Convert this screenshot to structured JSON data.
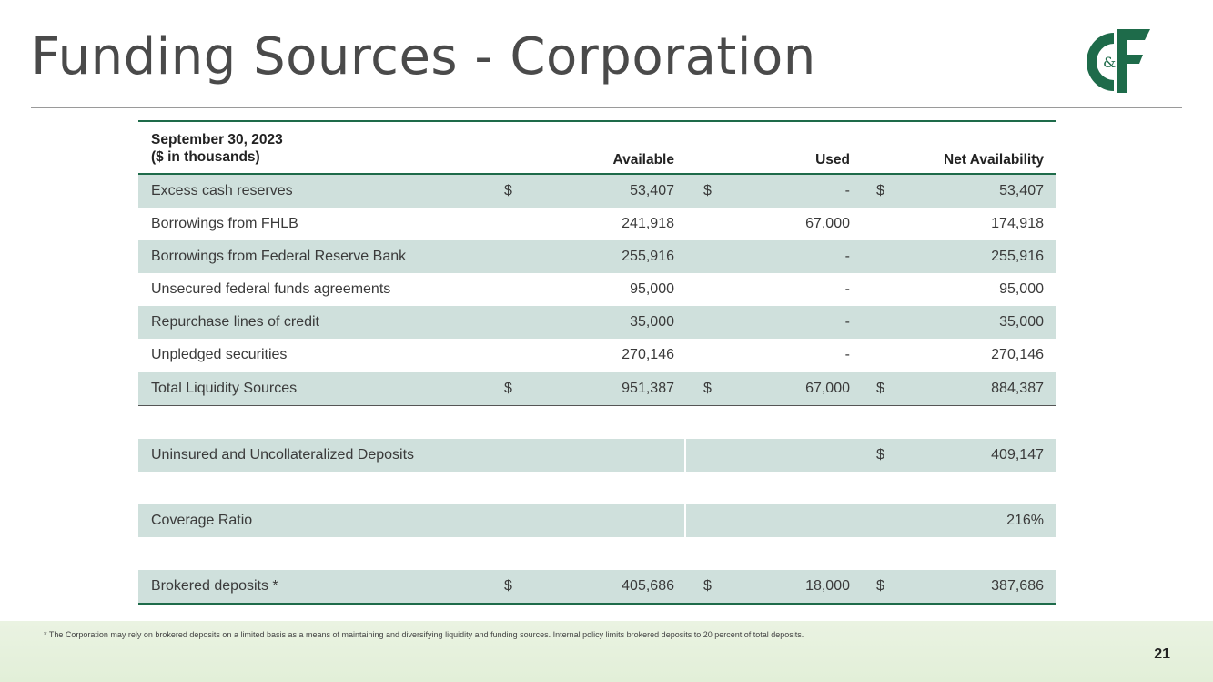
{
  "title": "Funding Sources - Corporation",
  "brand_color": "#1e6b4a",
  "table": {
    "date_line1": "September 30, 2023",
    "date_line2": "($ in thousands)",
    "headers": [
      "Available",
      "Used",
      "Net Availability"
    ],
    "rows": [
      {
        "label": "Excess cash reserves",
        "c1cur": "$",
        "c1": "53,407",
        "c2cur": "$",
        "c2": "-",
        "c3cur": "$",
        "c3": "53,407"
      },
      {
        "label": "Borrowings from FHLB",
        "c1": "241,918",
        "c2": "67,000",
        "c3": "174,918"
      },
      {
        "label": "Borrowings from Federal Reserve Bank",
        "c1": "255,916",
        "c2": "-",
        "c3": "255,916"
      },
      {
        "label": "Unsecured federal funds agreements",
        "c1": "95,000",
        "c2": "-",
        "c3": "95,000"
      },
      {
        "label": "Repurchase lines of credit",
        "c1": "35,000",
        "c2": "-",
        "c3": "35,000"
      },
      {
        "label": "Unpledged securities",
        "c1": "270,146",
        "c2": "-",
        "c3": "270,146"
      }
    ],
    "total": {
      "label": "Total Liquidity Sources",
      "c1cur": "$",
      "c1": "951,387",
      "c2cur": "$",
      "c2": "67,000",
      "c3cur": "$",
      "c3": "884,387"
    },
    "uninsured": {
      "label": "Uninsured and Uncollateralized Deposits",
      "c3cur": "$",
      "c3": "409,147"
    },
    "coverage": {
      "label": "Coverage Ratio",
      "c3": "216%"
    },
    "brokered": {
      "label": "Brokered deposits *",
      "c1cur": "$",
      "c1": "405,686",
      "c2cur": "$",
      "c2": "18,000",
      "c3cur": "$",
      "c3": "387,686"
    }
  },
  "footnote": "* The Corporation may rely on brokered deposits on a limited basis as a means of maintaining and diversifying liquidity and funding sources. Internal policy limits brokered deposits to 20 percent of total deposits.",
  "page_number": "21",
  "logo_text": "C&F"
}
